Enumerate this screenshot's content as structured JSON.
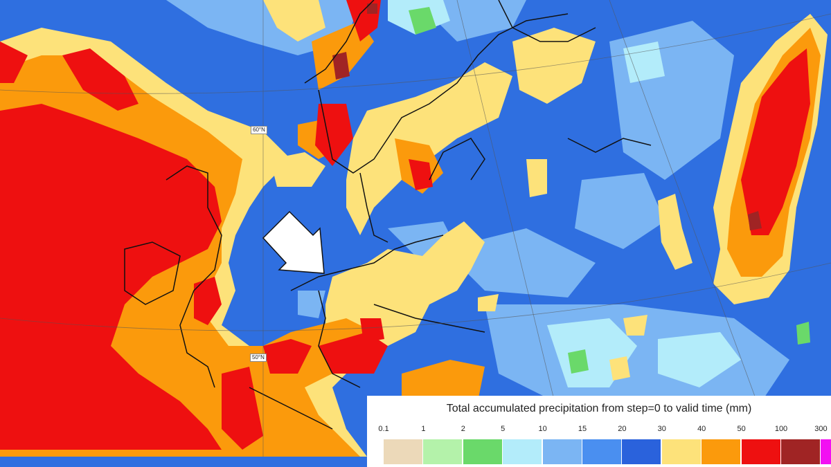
{
  "map": {
    "lat_labels": [
      "60°N",
      "50°N"
    ],
    "annotation_arrow": "arrow-pointing-to-netherlands-coast"
  },
  "legend": {
    "title": "Total accumulated precipitation from step=0 to valid time (mm)",
    "ticks": [
      "0.1",
      "1",
      "2",
      "5",
      "10",
      "15",
      "20",
      "30",
      "40",
      "50",
      "100",
      "300"
    ],
    "colors": [
      "#ecd9b9",
      "#b4f2aa",
      "#6ad96a",
      "#b3ecfa",
      "#7bb5f3",
      "#4a8ff0",
      "#2a62dc",
      "#fde27a",
      "#fb9a0c",
      "#ee1010",
      "#a02424",
      "#f20ff2"
    ]
  }
}
